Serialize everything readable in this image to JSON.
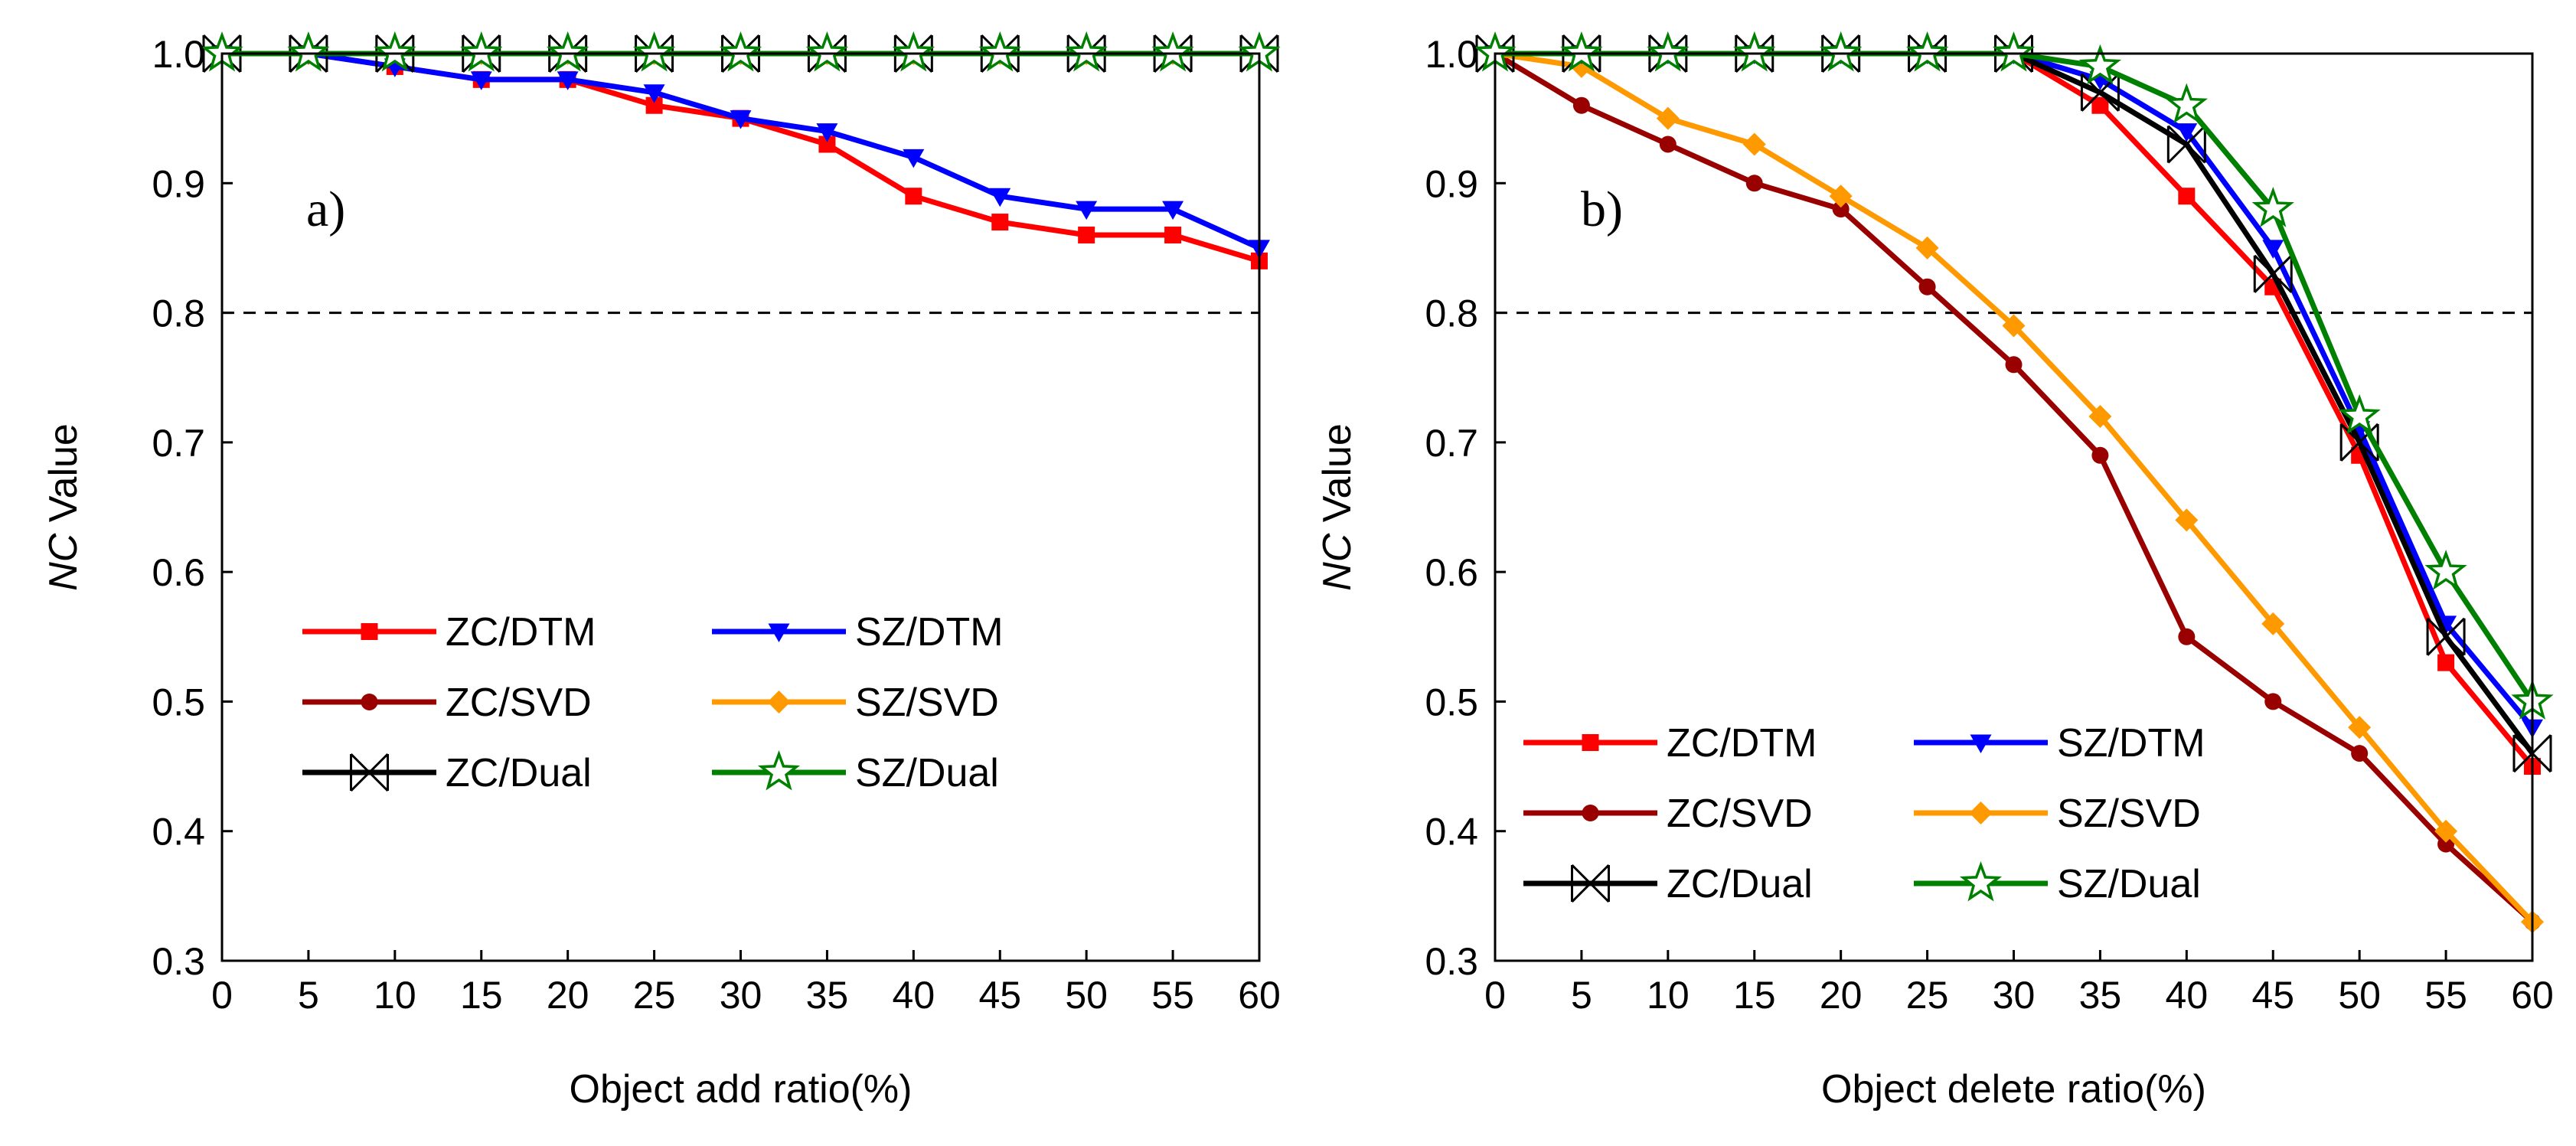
{
  "chart_data": [
    {
      "type": "line",
      "panel_label": "a)",
      "xlabel": "Object add ratio(%)",
      "ylabel_italic": "NC",
      "ylabel_rest": " Value",
      "xlim": [
        0,
        60
      ],
      "ylim": [
        0.3,
        1.0
      ],
      "xticks": [
        "0",
        "5",
        "10",
        "15",
        "20",
        "25",
        "30",
        "35",
        "40",
        "45",
        "50",
        "55",
        "60"
      ],
      "yticks": [
        "0.3",
        "0.4",
        "0.5",
        "0.6",
        "0.7",
        "0.8",
        "0.9",
        "1.0"
      ],
      "threshold": 0.8,
      "x": [
        0,
        5,
        10,
        15,
        20,
        25,
        30,
        35,
        40,
        45,
        50,
        55,
        60
      ],
      "series": [
        {
          "name": "ZC/DTM",
          "color": "#ff0000",
          "marker": "square",
          "values": [
            1.0,
            1.0,
            0.99,
            0.98,
            0.98,
            0.96,
            0.95,
            0.93,
            0.89,
            0.87,
            0.86,
            0.86,
            0.84
          ]
        },
        {
          "name": "SZ/DTM",
          "color": "#0000ff",
          "marker": "triangle",
          "values": [
            1.0,
            1.0,
            0.99,
            0.98,
            0.98,
            0.97,
            0.95,
            0.94,
            0.92,
            0.89,
            0.88,
            0.88,
            0.85
          ]
        },
        {
          "name": "ZC/SVD",
          "color": "#990000",
          "marker": "circle",
          "values": [
            1.0,
            1.0,
            1.0,
            1.0,
            1.0,
            1.0,
            1.0,
            1.0,
            1.0,
            1.0,
            1.0,
            1.0,
            1.0
          ]
        },
        {
          "name": "SZ/SVD",
          "color": "#ff9900",
          "marker": "diamond",
          "values": [
            1.0,
            1.0,
            1.0,
            1.0,
            1.0,
            1.0,
            1.0,
            1.0,
            1.0,
            1.0,
            1.0,
            1.0,
            1.0
          ]
        },
        {
          "name": "ZC/Dual",
          "color": "#000000",
          "marker": "xbox",
          "values": [
            1.0,
            1.0,
            1.0,
            1.0,
            1.0,
            1.0,
            1.0,
            1.0,
            1.0,
            1.0,
            1.0,
            1.0,
            1.0
          ]
        },
        {
          "name": "SZ/Dual",
          "color": "#008000",
          "marker": "star",
          "values": [
            1.0,
            1.0,
            1.0,
            1.0,
            1.0,
            1.0,
            1.0,
            1.0,
            1.0,
            1.0,
            1.0,
            1.0,
            1.0
          ]
        }
      ]
    },
    {
      "type": "line",
      "panel_label": "b)",
      "xlabel": "Object delete ratio(%)",
      "ylabel_italic": "NC",
      "ylabel_rest": " Value",
      "xlim": [
        0,
        60
      ],
      "ylim": [
        0.3,
        1.0
      ],
      "xticks": [
        "0",
        "5",
        "10",
        "15",
        "20",
        "25",
        "30",
        "35",
        "40",
        "45",
        "50",
        "55",
        "60"
      ],
      "yticks": [
        "0.3",
        "0.4",
        "0.5",
        "0.6",
        "0.7",
        "0.8",
        "0.9",
        "1.0"
      ],
      "threshold": 0.8,
      "x": [
        0,
        5,
        10,
        15,
        20,
        25,
        30,
        35,
        40,
        45,
        50,
        55,
        60
      ],
      "series": [
        {
          "name": "ZC/DTM",
          "color": "#ff0000",
          "marker": "square",
          "values": [
            1.0,
            1.0,
            1.0,
            1.0,
            1.0,
            1.0,
            1.0,
            0.96,
            0.89,
            0.82,
            0.69,
            0.53,
            0.45
          ]
        },
        {
          "name": "SZ/DTM",
          "color": "#0000ff",
          "marker": "triangle",
          "values": [
            1.0,
            1.0,
            1.0,
            1.0,
            1.0,
            1.0,
            1.0,
            0.98,
            0.94,
            0.85,
            0.71,
            0.56,
            0.48
          ]
        },
        {
          "name": "ZC/SVD",
          "color": "#990000",
          "marker": "circle",
          "values": [
            1.0,
            0.96,
            0.93,
            0.9,
            0.88,
            0.82,
            0.76,
            0.69,
            0.55,
            0.5,
            0.46,
            0.39,
            0.33
          ]
        },
        {
          "name": "SZ/SVD",
          "color": "#ff9900",
          "marker": "diamond",
          "values": [
            1.0,
            0.99,
            0.95,
            0.93,
            0.89,
            0.85,
            0.79,
            0.72,
            0.64,
            0.56,
            0.48,
            0.4,
            0.33
          ]
        },
        {
          "name": "ZC/Dual",
          "color": "#000000",
          "marker": "xbox",
          "values": [
            1.0,
            1.0,
            1.0,
            1.0,
            1.0,
            1.0,
            1.0,
            0.97,
            0.93,
            0.83,
            0.7,
            0.55,
            0.46
          ]
        },
        {
          "name": "SZ/Dual",
          "color": "#008000",
          "marker": "star",
          "values": [
            1.0,
            1.0,
            1.0,
            1.0,
            1.0,
            1.0,
            1.0,
            0.99,
            0.96,
            0.88,
            0.72,
            0.6,
            0.5
          ]
        }
      ]
    }
  ]
}
